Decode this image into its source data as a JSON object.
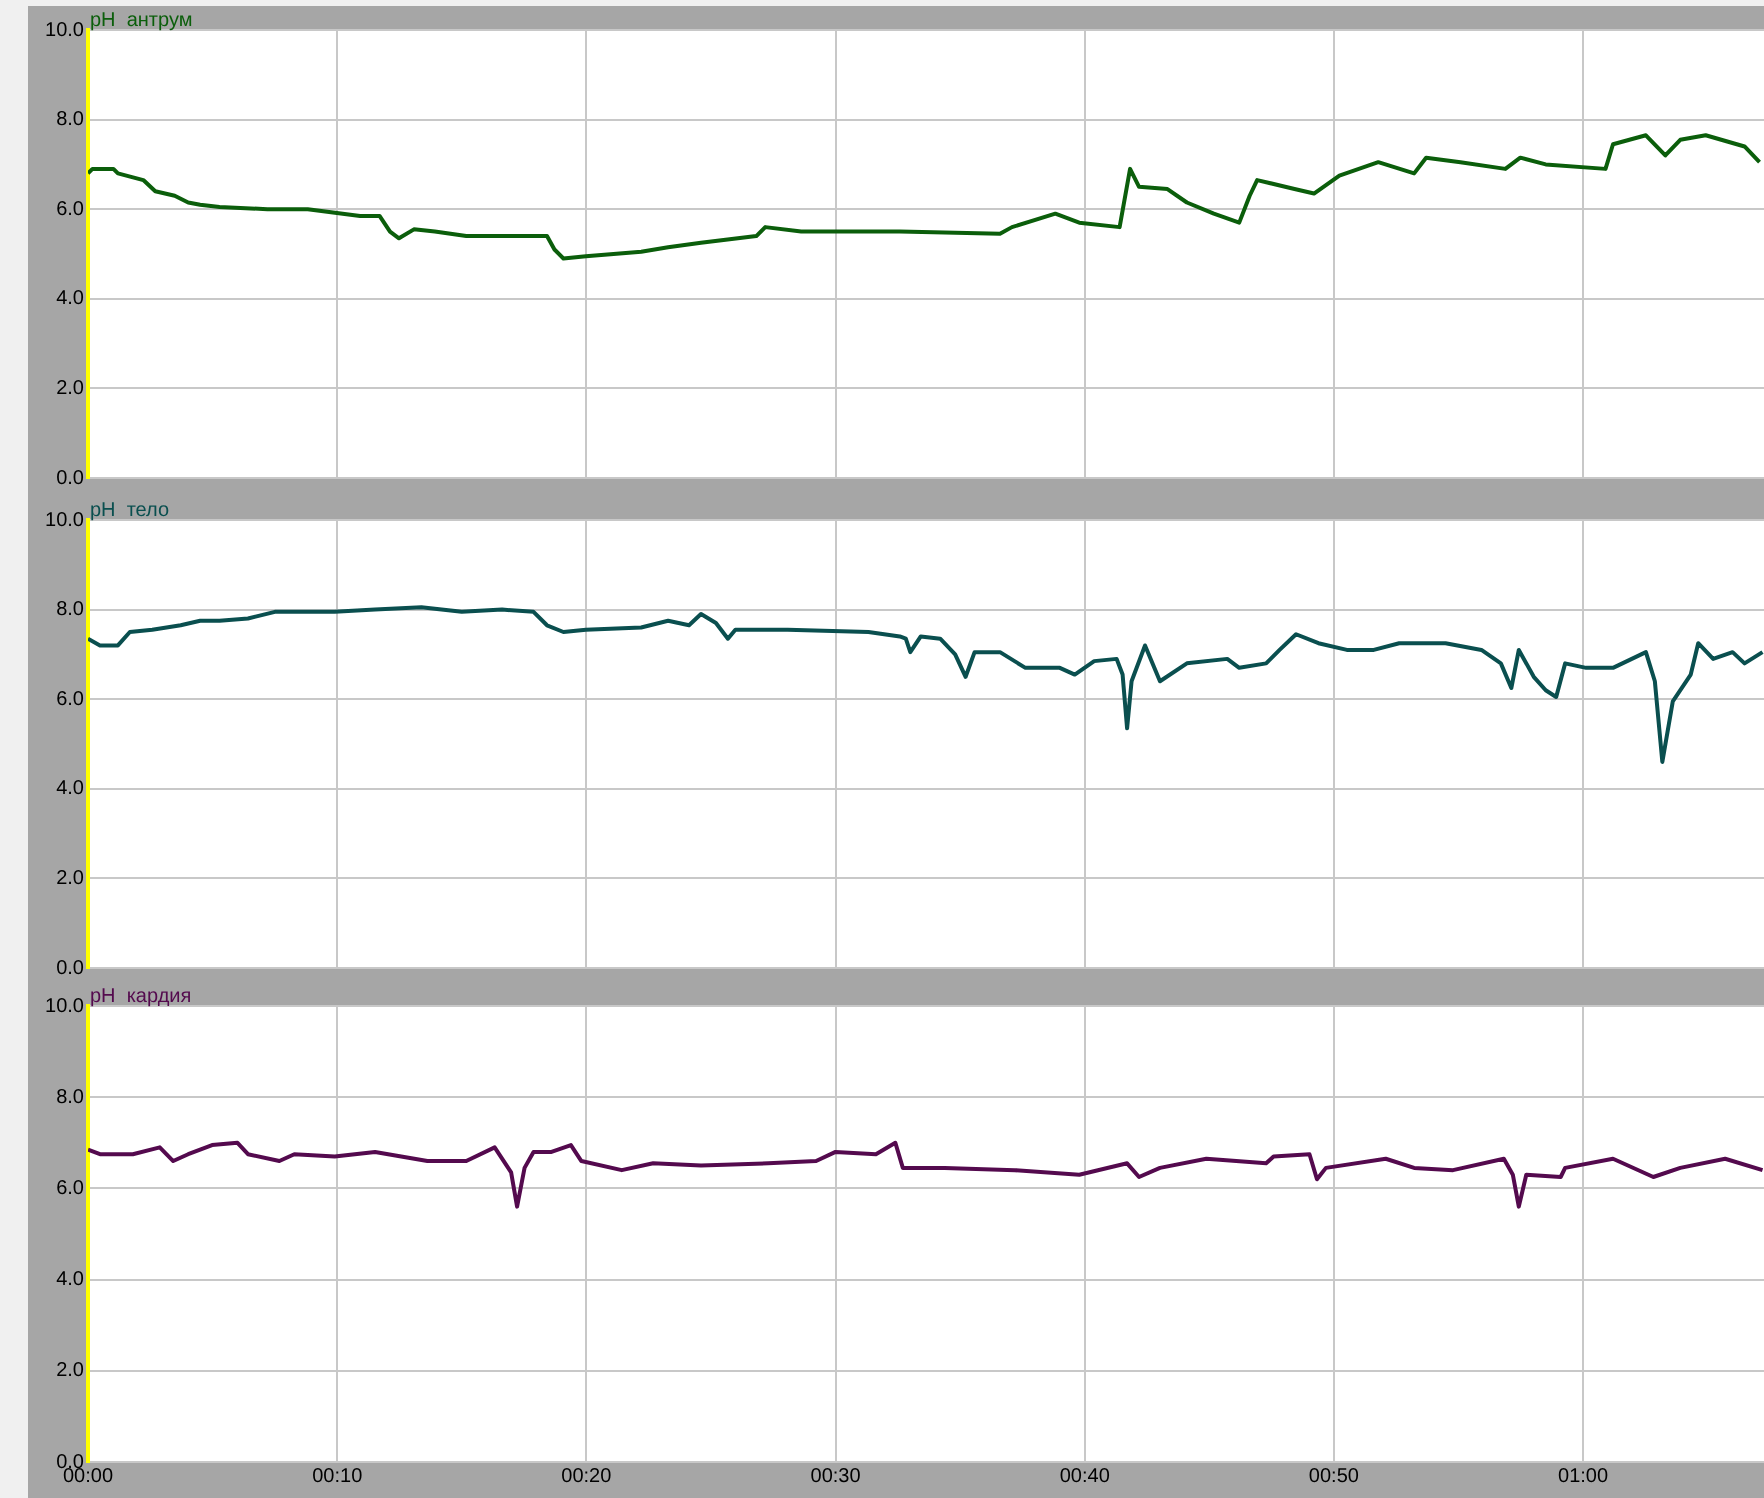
{
  "chart_data": [
    {
      "type": "line",
      "title": "pH  антрум",
      "tick_labels": "y",
      "grid": true,
      "x": [
        0,
        0.003,
        0.017,
        0.02,
        0.037,
        0.045,
        0.058,
        0.067,
        0.075,
        0.088,
        0.12,
        0.147,
        0.182,
        0.195,
        0.202,
        0.208,
        0.218,
        0.232,
        0.253,
        0.28,
        0.307,
        0.312,
        0.318,
        0.333,
        0.37,
        0.388,
        0.41,
        0.447,
        0.453,
        0.477,
        0.543,
        0.61,
        0.618,
        0.647,
        0.663,
        0.69,
        0.697,
        0.703,
        0.722,
        0.735,
        0.753,
        0.77,
        0.777,
        0.782,
        0.807,
        0.82,
        0.837,
        0.863,
        0.887,
        0.895,
        0.918,
        0.948,
        0.958,
        0.975,
        1.015,
        1.02,
        1.042,
        1.055,
        1.065,
        1.082,
        1.108,
        1.118
      ],
      "series": [
        {
          "color": "#0b5e0b",
          "values": [
            6.8,
            6.9,
            6.9,
            6.8,
            6.65,
            6.4,
            6.3,
            6.15,
            6.1,
            6.05,
            6.0,
            6.0,
            5.85,
            5.85,
            5.5,
            5.35,
            5.55,
            5.5,
            5.4,
            5.4,
            5.4,
            5.1,
            4.9,
            4.95,
            5.05,
            5.15,
            5.25,
            5.4,
            5.6,
            5.5,
            5.5,
            5.45,
            5.6,
            5.9,
            5.7,
            5.6,
            6.9,
            6.5,
            6.45,
            6.15,
            5.9,
            5.7,
            6.3,
            6.65,
            6.45,
            6.35,
            6.75,
            7.05,
            6.8,
            7.15,
            7.05,
            6.9,
            7.15,
            7.0,
            6.9,
            7.45,
            7.65,
            7.2,
            7.55,
            7.65,
            7.4,
            7.05
          ]
        }
      ],
      "xlim": [
        0,
        1.121
      ],
      "xticks": [
        {
          "value": 0,
          "label": null
        },
        {
          "value": 0.1667,
          "label": null
        },
        {
          "value": 0.3333,
          "label": null
        },
        {
          "value": 0.5,
          "label": null
        },
        {
          "value": 0.6667,
          "label": null
        },
        {
          "value": 0.8333,
          "label": null
        },
        {
          "value": 1,
          "label": null
        }
      ],
      "ylim": [
        0,
        10
      ],
      "yticks": [
        {
          "value": 0,
          "label": "0.0"
        },
        {
          "value": 2,
          "label": "2.0"
        },
        {
          "value": 4,
          "label": "4.0"
        },
        {
          "value": 6,
          "label": "6.0"
        },
        {
          "value": 8,
          "label": "8.0"
        },
        {
          "value": 10,
          "label": "10.0"
        }
      ]
    },
    {
      "type": "line",
      "title": "pH  тело",
      "tick_labels": "y",
      "grid": true,
      "x": [
        0,
        0.008,
        0.02,
        0.028,
        0.043,
        0.062,
        0.075,
        0.088,
        0.107,
        0.125,
        0.165,
        0.192,
        0.223,
        0.25,
        0.277,
        0.298,
        0.307,
        0.318,
        0.333,
        0.37,
        0.388,
        0.402,
        0.41,
        0.42,
        0.428,
        0.433,
        0.468,
        0.522,
        0.543,
        0.547,
        0.55,
        0.557,
        0.57,
        0.58,
        0.587,
        0.593,
        0.61,
        0.627,
        0.65,
        0.66,
        0.673,
        0.688,
        0.692,
        0.695,
        0.698,
        0.707,
        0.717,
        0.735,
        0.762,
        0.77,
        0.788,
        0.797,
        0.808,
        0.823,
        0.842,
        0.86,
        0.877,
        0.908,
        0.932,
        0.945,
        0.952,
        0.957,
        0.967,
        0.975,
        0.982,
        0.988,
        1.002,
        1.02,
        1.042,
        1.048,
        1.053,
        1.06,
        1.072,
        1.077,
        1.087,
        1.1,
        1.108,
        1.12
      ],
      "series": [
        {
          "color": "#0a4f4f",
          "values": [
            7.35,
            7.2,
            7.2,
            7.5,
            7.55,
            7.65,
            7.75,
            7.75,
            7.8,
            7.95,
            7.95,
            8.0,
            8.05,
            7.95,
            8.0,
            7.95,
            7.65,
            7.5,
            7.55,
            7.6,
            7.75,
            7.65,
            7.9,
            7.7,
            7.35,
            7.55,
            7.55,
            7.5,
            7.4,
            7.35,
            7.05,
            7.4,
            7.35,
            7.0,
            6.5,
            7.05,
            7.05,
            6.7,
            6.7,
            6.55,
            6.85,
            6.9,
            6.55,
            5.35,
            6.4,
            7.2,
            6.4,
            6.8,
            6.9,
            6.7,
            6.8,
            7.1,
            7.45,
            7.25,
            7.1,
            7.1,
            7.25,
            7.25,
            7.1,
            6.8,
            6.25,
            7.1,
            6.5,
            6.2,
            6.05,
            6.8,
            6.7,
            6.7,
            7.05,
            6.4,
            4.6,
            5.95,
            6.55,
            7.25,
            6.9,
            7.05,
            6.8,
            7.05
          ]
        }
      ],
      "xlim": [
        0,
        1.121
      ],
      "xticks": [
        {
          "value": 0,
          "label": null
        },
        {
          "value": 0.1667,
          "label": null
        },
        {
          "value": 0.3333,
          "label": null
        },
        {
          "value": 0.5,
          "label": null
        },
        {
          "value": 0.6667,
          "label": null
        },
        {
          "value": 0.8333,
          "label": null
        },
        {
          "value": 1,
          "label": null
        }
      ],
      "ylim": [
        0,
        10
      ],
      "yticks": [
        {
          "value": 0,
          "label": "0.0"
        },
        {
          "value": 2,
          "label": "2.0"
        },
        {
          "value": 4,
          "label": "4.0"
        },
        {
          "value": 6,
          "label": "6.0"
        },
        {
          "value": 8,
          "label": "8.0"
        },
        {
          "value": 10,
          "label": "10.0"
        }
      ]
    },
    {
      "type": "line",
      "title": "pH  кардия",
      "grid": true,
      "x": [
        0,
        0.008,
        0.03,
        0.048,
        0.057,
        0.067,
        0.083,
        0.1,
        0.107,
        0.128,
        0.138,
        0.165,
        0.192,
        0.227,
        0.253,
        0.272,
        0.283,
        0.287,
        0.292,
        0.298,
        0.31,
        0.323,
        0.33,
        0.357,
        0.378,
        0.41,
        0.455,
        0.487,
        0.5,
        0.527,
        0.54,
        0.545,
        0.573,
        0.62,
        0.663,
        0.695,
        0.703,
        0.717,
        0.748,
        0.788,
        0.793,
        0.817,
        0.822,
        0.828,
        0.868,
        0.887,
        0.913,
        0.947,
        0.953,
        0.957,
        0.962,
        0.985,
        0.988,
        1.02,
        1.047,
        1.065,
        1.095,
        1.12
      ],
      "series": [
        {
          "color": "#540a4e",
          "values": [
            6.85,
            6.75,
            6.75,
            6.9,
            6.6,
            6.75,
            6.95,
            7.0,
            6.75,
            6.6,
            6.75,
            6.7,
            6.8,
            6.6,
            6.6,
            6.9,
            6.35,
            5.6,
            6.45,
            6.8,
            6.8,
            6.95,
            6.6,
            6.4,
            6.55,
            6.5,
            6.55,
            6.6,
            6.8,
            6.75,
            7.0,
            6.45,
            6.45,
            6.4,
            6.3,
            6.55,
            6.25,
            6.45,
            6.65,
            6.55,
            6.7,
            6.75,
            6.2,
            6.45,
            6.65,
            6.45,
            6.4,
            6.65,
            6.3,
            5.6,
            6.3,
            6.25,
            6.45,
            6.65,
            6.25,
            6.45,
            6.65,
            6.4
          ]
        }
      ],
      "xlim": [
        0,
        1.121
      ],
      "xticks": [
        {
          "value": 0,
          "label": "00:00"
        },
        {
          "value": 0.1667,
          "label": "00:10"
        },
        {
          "value": 0.3333,
          "label": "00:20"
        },
        {
          "value": 0.5,
          "label": "00:30"
        },
        {
          "value": 0.6667,
          "label": "00:40"
        },
        {
          "value": 0.8333,
          "label": "00:50"
        },
        {
          "value": 1,
          "label": "01:00"
        }
      ],
      "ylim": [
        0,
        10
      ],
      "yticks": [
        {
          "value": 0,
          "label": "0.0"
        },
        {
          "value": 2,
          "label": "2.0"
        },
        {
          "value": 4,
          "label": "4.0"
        },
        {
          "value": 6,
          "label": "6.0"
        },
        {
          "value": 8,
          "label": "8.0"
        },
        {
          "value": 10,
          "label": "10.0"
        }
      ]
    }
  ]
}
